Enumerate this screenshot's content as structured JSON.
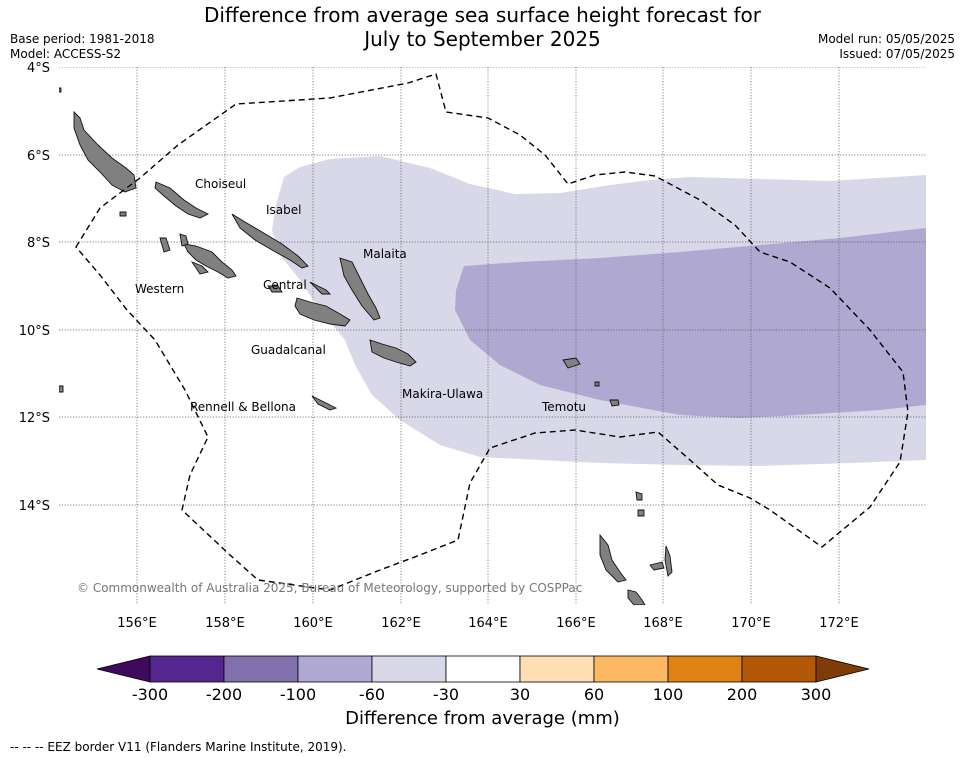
{
  "header": {
    "title_line1": "Difference from average sea surface height forecast for",
    "title_line2": "July to September 2025",
    "base_period": "Base period: 1981-2018",
    "model": "Model: ACCESS-S2",
    "model_run": "Model run: 05/05/2025",
    "issued": "Issued: 07/05/2025"
  },
  "map": {
    "latitude_labels": [
      "4°S",
      "6°S",
      "8°S",
      "10°S",
      "12°S",
      "14°S"
    ],
    "longitude_labels": [
      "156°E",
      "158°E",
      "160°E",
      "162°E",
      "164°E",
      "166°E",
      "168°E",
      "170°E",
      "172°E"
    ],
    "region_labels": {
      "choiseul": "Choiseul",
      "isabel": "Isabel",
      "malaita": "Malaita",
      "western": "Western",
      "central": "Central",
      "guadalcanal": "Guadalcanal",
      "makira": "Makira-Ulawa",
      "temotu": "Temotu",
      "rennell": "Rennell & Bellona"
    },
    "copyright": "© Commonwealth of Australia 2025, Bureau of Meteorology, supported by COSPPac",
    "colors": {
      "land": "#808080",
      "band_minus60_to_minus30": "#d8d8e9",
      "band_minus100_to_minus60": "#afa9d1"
    }
  },
  "colorbar": {
    "title": "Difference from average (mm)",
    "ticks": [
      "-300",
      "-200",
      "-100",
      "-60",
      "-30",
      "30",
      "60",
      "100",
      "200",
      "300"
    ],
    "colors": [
      "#3f0a5e",
      "#54278f",
      "#8071ad",
      "#afa9d1",
      "#d8d8e9",
      "#ffffff",
      "#fedfb3",
      "#fdb863",
      "#e08214",
      "#b35806",
      "#7f3b08"
    ]
  },
  "footer": {
    "legend_text": "--  --  -- EEZ border V11 (Flanders Marine Institute, 2019)."
  }
}
